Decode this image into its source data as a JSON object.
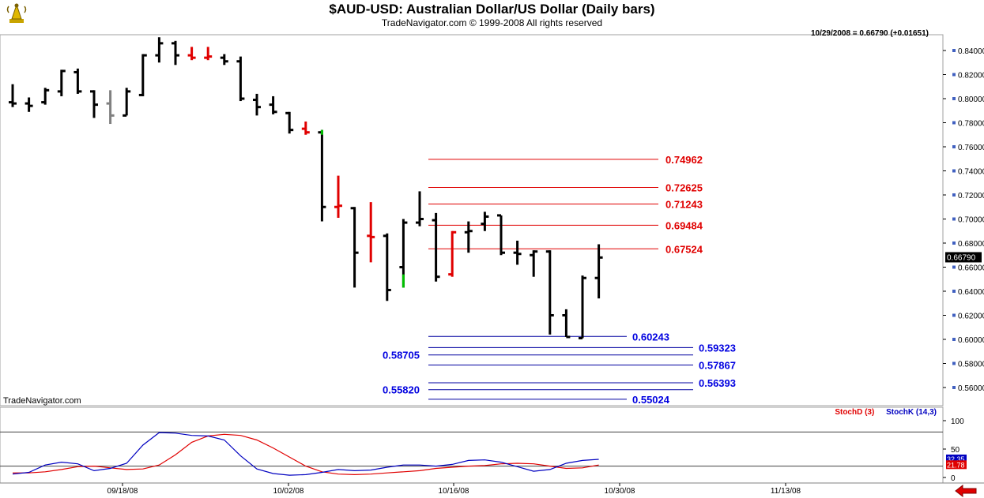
{
  "header": {
    "title": "$AUD-USD:  Australian Dollar/US Dollar  (Daily bars)",
    "subtitle": "TradeNavigator.com © 1999-2008 All rights reserved",
    "quote": "10/29/2008 = 0.66790 (+0.01651)",
    "watermark": "TradeNavigator.com",
    "logo_icon": "signal-tower-logo-icon",
    "back_icon": "back-arrow-icon"
  },
  "chart_data": [
    {
      "type": "ohlc",
      "ylim": [
        0.55,
        0.85
      ],
      "yticks": [
        "0.56000",
        "0.58000",
        "0.60000",
        "0.62000",
        "0.64000",
        "0.66000",
        "0.68000",
        "0.70000",
        "0.72000",
        "0.74000",
        "0.76000",
        "0.78000",
        "0.80000",
        "0.82000",
        "0.84000"
      ],
      "last_price_label": "0.66790",
      "xlabels": [
        "09/18/08",
        "10/02/08",
        "10/16/08",
        "10/30/08",
        "11/13/08"
      ],
      "colors": {
        "up": "#000000",
        "down_highlight": "#e00000",
        "neutral": "#808080",
        "signal": "#00c000"
      },
      "bars": [
        {
          "date": "09/10/08",
          "open": 0.797,
          "high": 0.812,
          "low": 0.793,
          "close": 0.796,
          "color": "black"
        },
        {
          "date": "09/11/08",
          "open": 0.796,
          "high": 0.801,
          "low": 0.789,
          "close": 0.794,
          "color": "black"
        },
        {
          "date": "09/12/08",
          "open": 0.797,
          "high": 0.809,
          "low": 0.795,
          "close": 0.807,
          "color": "black"
        },
        {
          "date": "09/15/08",
          "open": 0.806,
          "high": 0.824,
          "low": 0.802,
          "close": 0.823,
          "color": "black"
        },
        {
          "date": "09/16/08",
          "open": 0.822,
          "high": 0.825,
          "low": 0.804,
          "close": 0.806,
          "color": "black"
        },
        {
          "date": "09/17/08",
          "open": 0.806,
          "high": 0.807,
          "low": 0.784,
          "close": 0.795,
          "color": "black"
        },
        {
          "date": "09/18/08",
          "open": 0.796,
          "high": 0.807,
          "low": 0.779,
          "close": 0.786,
          "color": "gray"
        },
        {
          "date": "09/19/08",
          "open": 0.786,
          "high": 0.809,
          "low": 0.786,
          "close": 0.806,
          "color": "black"
        },
        {
          "date": "09/22/08",
          "open": 0.803,
          "high": 0.837,
          "low": 0.802,
          "close": 0.836,
          "color": "black"
        },
        {
          "date": "09/23/08",
          "open": 0.836,
          "high": 0.851,
          "low": 0.83,
          "close": 0.846,
          "color": "black"
        },
        {
          "date": "09/24/08",
          "open": 0.846,
          "high": 0.848,
          "low": 0.828,
          "close": 0.836,
          "color": "black"
        },
        {
          "date": "09/25/08",
          "open": 0.836,
          "high": 0.843,
          "low": 0.832,
          "close": 0.834,
          "color": "red"
        },
        {
          "date": "09/26/08",
          "open": 0.834,
          "high": 0.843,
          "low": 0.832,
          "close": 0.835,
          "color": "red"
        },
        {
          "date": "09/29/08",
          "open": 0.834,
          "high": 0.837,
          "low": 0.828,
          "close": 0.831,
          "color": "black"
        },
        {
          "date": "09/30/08",
          "open": 0.831,
          "high": 0.835,
          "low": 0.798,
          "close": 0.8,
          "color": "black"
        },
        {
          "date": "10/01/08",
          "open": 0.799,
          "high": 0.804,
          "low": 0.786,
          "close": 0.793,
          "color": "black"
        },
        {
          "date": "10/02/08",
          "open": 0.795,
          "high": 0.802,
          "low": 0.787,
          "close": 0.789,
          "color": "black"
        },
        {
          "date": "10/03/08",
          "open": 0.788,
          "high": 0.789,
          "low": 0.771,
          "close": 0.774,
          "color": "black"
        },
        {
          "date": "10/06/08",
          "open": 0.775,
          "high": 0.781,
          "low": 0.77,
          "close": 0.772,
          "color": "red"
        },
        {
          "date": "10/07/08",
          "open": 0.772,
          "high": 0.774,
          "low": 0.698,
          "close": 0.71,
          "color": "black"
        },
        {
          "date": "10/08/08",
          "open": 0.71,
          "high": 0.736,
          "low": 0.701,
          "close": 0.711,
          "color": "red"
        },
        {
          "date": "10/09/08",
          "open": 0.709,
          "high": 0.71,
          "low": 0.643,
          "close": 0.672,
          "color": "black"
        },
        {
          "date": "10/10/08",
          "open": 0.686,
          "high": 0.714,
          "low": 0.664,
          "close": 0.685,
          "color": "red"
        },
        {
          "date": "10/13/08",
          "open": 0.686,
          "high": 0.688,
          "low": 0.632,
          "close": 0.641,
          "color": "black"
        },
        {
          "date": "10/14/08",
          "open": 0.66,
          "high": 0.7,
          "low": 0.643,
          "close": 0.697,
          "color": "black"
        },
        {
          "date": "10/15/08",
          "open": 0.697,
          "high": 0.723,
          "low": 0.694,
          "close": 0.7,
          "color": "black"
        },
        {
          "date": "10/16/08",
          "open": 0.699,
          "high": 0.705,
          "low": 0.648,
          "close": 0.652,
          "color": "black"
        },
        {
          "date": "10/17/08",
          "open": 0.654,
          "high": 0.69,
          "low": 0.652,
          "close": 0.689,
          "color": "red"
        },
        {
          "date": "10/20/08",
          "open": 0.689,
          "high": 0.698,
          "low": 0.672,
          "close": 0.69,
          "color": "black"
        },
        {
          "date": "10/21/08",
          "open": 0.696,
          "high": 0.706,
          "low": 0.69,
          "close": 0.702,
          "color": "black"
        },
        {
          "date": "10/22/08",
          "open": 0.703,
          "high": 0.703,
          "low": 0.67,
          "close": 0.672,
          "color": "black"
        },
        {
          "date": "10/23/08",
          "open": 0.672,
          "high": 0.682,
          "low": 0.662,
          "close": 0.671,
          "color": "black"
        },
        {
          "date": "10/24/08",
          "open": 0.67,
          "high": 0.674,
          "low": 0.652,
          "close": 0.673,
          "color": "black"
        },
        {
          "date": "10/27/08",
          "open": 0.673,
          "high": 0.674,
          "low": 0.604,
          "close": 0.62,
          "color": "black"
        },
        {
          "date": "10/28/08",
          "open": 0.62,
          "high": 0.625,
          "low": 0.602,
          "close": 0.602,
          "color": "black"
        },
        {
          "date": "10/29/08",
          "open": 0.601,
          "high": 0.653,
          "low": 0.601,
          "close": 0.651,
          "color": "black"
        },
        {
          "date": "10/30/08",
          "open": 0.651,
          "high": 0.679,
          "low": 0.634,
          "close": 0.668,
          "color": "black"
        }
      ],
      "resistance_levels": [
        {
          "label": "0.74962",
          "value": 0.74962
        },
        {
          "label": "0.72625",
          "value": 0.72625
        },
        {
          "label": "0.71243",
          "value": 0.71243
        },
        {
          "label": "0.69484",
          "value": 0.69484
        },
        {
          "label": "0.67524",
          "value": 0.67524
        }
      ],
      "support_levels": [
        {
          "label": "0.60243",
          "value": 0.60243
        },
        {
          "label": "0.59323",
          "value": 0.59323
        },
        {
          "label": "0.58705",
          "value": 0.58705
        },
        {
          "label": "0.57867",
          "value": 0.57867
        },
        {
          "label": "0.56393",
          "value": 0.56393
        },
        {
          "label": "0.55820",
          "value": 0.5582
        },
        {
          "label": "0.55024",
          "value": 0.55024
        }
      ]
    },
    {
      "type": "line",
      "ylim": [
        0,
        100
      ],
      "yticks": [
        "0",
        "50",
        "100"
      ],
      "reference_lines": [
        20,
        80
      ],
      "current_labels": {
        "stochK": "32.35",
        "stochD": "21.78"
      },
      "series": [
        {
          "name": "StochD (3)",
          "color": "#e00000",
          "values": [
            8,
            8,
            10,
            14,
            19,
            20,
            17,
            14,
            15,
            22,
            40,
            62,
            73,
            76,
            74,
            66,
            52,
            36,
            20,
            10,
            6,
            5,
            6,
            8,
            10,
            12,
            16,
            18,
            20,
            21,
            24,
            25,
            24,
            20,
            16,
            17,
            22
          ]
        },
        {
          "name": "StochK (14,3)",
          "color": "#0000c0",
          "values": [
            6,
            9,
            22,
            27,
            24,
            12,
            16,
            25,
            57,
            79,
            78,
            74,
            73,
            66,
            38,
            15,
            7,
            4,
            5,
            9,
            14,
            12,
            13,
            18,
            22,
            22,
            20,
            23,
            30,
            31,
            27,
            19,
            11,
            14,
            25,
            30,
            32
          ]
        }
      ]
    }
  ]
}
